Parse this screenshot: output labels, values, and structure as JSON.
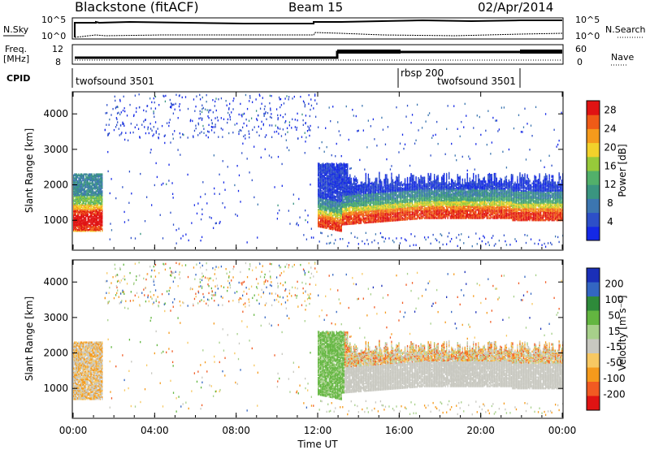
{
  "header": {
    "station": "Blackstone (fitACF)",
    "beam": "Beam 15",
    "date": "02/Apr/2014"
  },
  "top_panels": {
    "nsky_label": "N.Sky",
    "nsearch_label": "N.Search",
    "n_tick_high": "10^5",
    "n_tick_low": "10^0",
    "freq_label": "Freq.",
    "freq_unit": "[MHz]",
    "freq_tick_12": "12",
    "freq_tick_8": "8",
    "nave_label": "Nave",
    "nave_tick_60": "60",
    "nave_tick_0": "0",
    "cpid_label": "CPID",
    "cpid_segments": [
      "twofsound 3501",
      "rbsp 200",
      "twofsound 3501"
    ]
  },
  "colors": {
    "power": [
      "#1428e6",
      "#2d4fc8",
      "#3c76b0",
      "#3a9580",
      "#52b06a",
      "#97c93a",
      "#f2d12b",
      "#f59a1c",
      "#ef5b17",
      "#e01313"
    ],
    "velocity": [
      "#e01313",
      "#f15a22",
      "#f59a1c",
      "#f7c862",
      "#c8c8c0",
      "#a7d08a",
      "#63b640",
      "#2e8a3a",
      "#3366c2",
      "#1a2fb8"
    ]
  },
  "chart_data": [
    {
      "type": "heatmap",
      "name": "power",
      "xlabel": "",
      "ylabel": "Slant Range [km]",
      "x_ticks": [
        "00:00",
        "04:00",
        "08:00",
        "12:00",
        "16:00",
        "20:00",
        "00:00"
      ],
      "xlim_hours": [
        0,
        24
      ],
      "ylim_km": [
        180,
        4600
      ],
      "y_ticks": [
        1000,
        2000,
        3000,
        4000
      ],
      "colorbar_label": "Power [dB]",
      "colorbar_ticks": [
        4,
        8,
        12,
        16,
        20,
        24,
        28
      ],
      "colorbar_range": [
        0,
        30
      ]
    },
    {
      "type": "heatmap",
      "name": "velocity",
      "xlabel": "Time UT",
      "ylabel": "Slant Range [km]",
      "x_ticks": [
        "00:00",
        "04:00",
        "08:00",
        "12:00",
        "16:00",
        "20:00",
        "00:00"
      ],
      "xlim_hours": [
        0,
        24
      ],
      "ylim_km": [
        180,
        4600
      ],
      "y_ticks": [
        1000,
        2000,
        3000,
        4000
      ],
      "colorbar_label": "Velocity [m s⁻¹]",
      "colorbar_ticks": [
        200,
        100,
        50,
        15,
        -15,
        -50,
        -100,
        -200
      ]
    }
  ]
}
